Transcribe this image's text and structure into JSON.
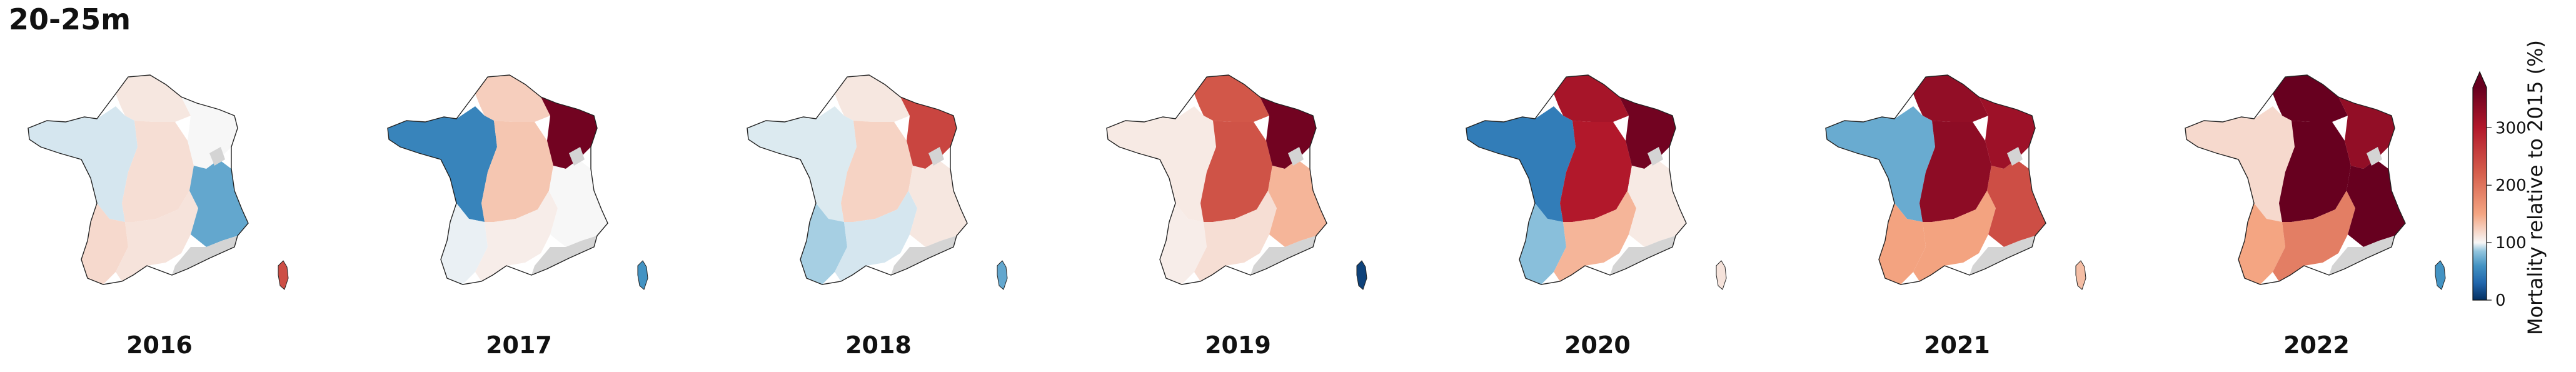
{
  "title": "20-25m",
  "legend": {
    "label": "Mortality relative to 2015 (%)",
    "ticks": [
      "0",
      "100",
      "200",
      "300"
    ],
    "min": 0,
    "max": 370,
    "extend": "max",
    "colormap": "RdBu_r",
    "no_data_color": "#d4d4d4"
  },
  "maps": [
    {
      "year": "2016",
      "levels": {
        "north": 110,
        "west": 95,
        "center": 115,
        "east": 100,
        "southwest": 118,
        "south": 112,
        "alps": 70,
        "corsica": 240
      }
    },
    {
      "year": "2017",
      "levels": {
        "north": 125,
        "west": 50,
        "center": 130,
        "east": 360,
        "southwest": 98,
        "south": 106,
        "alps": 100,
        "corsica": 60
      }
    },
    {
      "year": "2018",
      "levels": {
        "north": 110,
        "west": 96,
        "center": 122,
        "east": 250,
        "southwest": 88,
        "south": 95,
        "alps": 110,
        "corsica": 70
      }
    },
    {
      "year": "2019",
      "levels": {
        "north": 230,
        "west": 108,
        "center": 235,
        "east": 360,
        "southwest": 106,
        "south": 115,
        "alps": 140,
        "corsica": 10
      }
    },
    {
      "year": "2020",
      "levels": {
        "north": 310,
        "west": 45,
        "center": 300,
        "east": 360,
        "southwest": 82,
        "south": 140,
        "alps": 108,
        "corsica": 112
      }
    },
    {
      "year": "2021",
      "levels": {
        "north": 330,
        "west": 72,
        "center": 335,
        "east": 320,
        "southwest": 152,
        "south": 152,
        "alps": 240,
        "corsica": 135
      }
    },
    {
      "year": "2022",
      "levels": {
        "north": 380,
        "west": 118,
        "center": 380,
        "east": 330,
        "southwest": 150,
        "south": 190,
        "alps": 370,
        "corsica": 60
      }
    }
  ]
}
